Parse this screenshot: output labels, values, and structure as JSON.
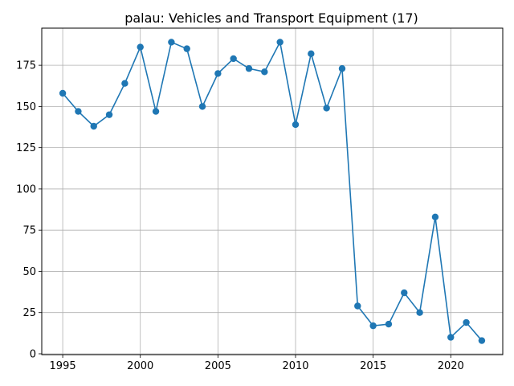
{
  "chart_data": {
    "type": "line",
    "title": "palau: Vehicles and Transport Equipment (17)",
    "xlabel": "",
    "ylabel": "",
    "grid": true,
    "marker": "circle",
    "line_color": "#1f77b4",
    "grid_color": "#b0b0b0",
    "xlim": [
      1993.65,
      2023.35
    ],
    "ylim": [
      -0.5,
      197.5
    ],
    "xticks": [
      1995,
      2000,
      2005,
      2010,
      2015,
      2020
    ],
    "yticks": [
      0,
      25,
      50,
      75,
      100,
      125,
      150,
      175
    ],
    "series": [
      {
        "x": [
          1995,
          1996,
          1997,
          1998,
          1999,
          2000,
          2001,
          2002,
          2003,
          2004,
          2005,
          2006,
          2007,
          2008,
          2009,
          2010,
          2011,
          2012,
          2013,
          2014,
          2015,
          2016,
          2017,
          2018,
          2019,
          2020,
          2021,
          2022
        ],
        "values": [
          158,
          147,
          138,
          145,
          164,
          186,
          147,
          189,
          185,
          150,
          170,
          179,
          173,
          171,
          189,
          139,
          182,
          149,
          173,
          29,
          17,
          18,
          37,
          25,
          83,
          10,
          19,
          8
        ]
      }
    ]
  }
}
